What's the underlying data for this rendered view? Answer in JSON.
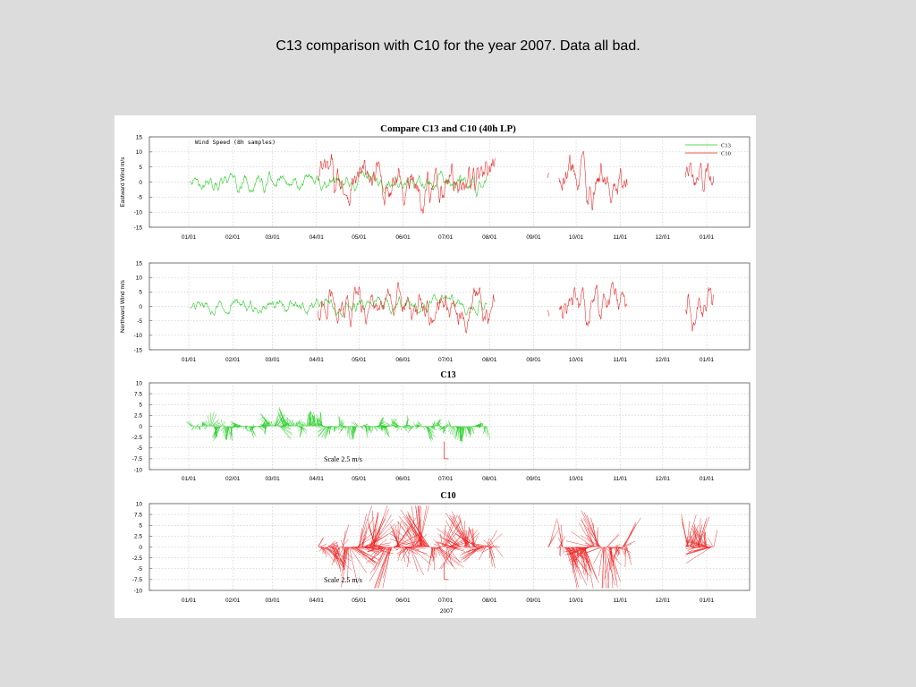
{
  "slide": {
    "title": "C13 comparison with C10 for the year 2007. Data all bad."
  },
  "colors": {
    "c13": "#22cc22",
    "c10": "#ee2222",
    "grid": "#bbbbbb",
    "frame": "#555555"
  },
  "chart_data": [
    {
      "type": "line",
      "title": "Compare C13 and C10 (40h LP)",
      "annotation": "Wind Speed (8h samples)",
      "ylabel": "Eastward Wind m/s",
      "ylim": [
        -15,
        15
      ],
      "yticks": [
        "15",
        "10",
        "5",
        "0",
        "-5",
        "-10",
        "-15"
      ],
      "xticks": [
        "01/01",
        "02/01",
        "03/01",
        "04/01",
        "05/01",
        "06/01",
        "07/01",
        "08/01",
        "09/01",
        "10/01",
        "11/01",
        "12/01",
        "01/01"
      ],
      "legend": {
        "position": "top-right",
        "entries": [
          "C13",
          "C10"
        ]
      },
      "series": [
        {
          "name": "C13",
          "segments": [
            [
              1,
              210
            ]
          ],
          "amplitude": 2.0
        },
        {
          "name": "C10",
          "segments": [
            [
              91,
              216
            ],
            [
              253,
              254
            ],
            [
              261,
              309
            ],
            [
              350,
              370
            ]
          ],
          "amplitude": 5.0
        }
      ]
    },
    {
      "type": "line",
      "ylabel": "Northward Wind m/s",
      "ylim": [
        -15,
        15
      ],
      "yticks": [
        "15",
        "10",
        "5",
        "0",
        "-5",
        "-10",
        "-15"
      ],
      "xticks": [
        "01/01",
        "02/01",
        "03/01",
        "04/01",
        "05/01",
        "06/01",
        "07/01",
        "08/01",
        "09/01",
        "10/01",
        "11/01",
        "12/01",
        "01/01"
      ],
      "series": [
        {
          "name": "C13",
          "segments": [
            [
              1,
              210
            ]
          ],
          "amplitude": 1.8
        },
        {
          "name": "C10",
          "segments": [
            [
              91,
              216
            ],
            [
              253,
              254
            ],
            [
              261,
              309
            ],
            [
              350,
              370
            ]
          ],
          "amplitude": 4.5
        }
      ]
    },
    {
      "type": "quiver",
      "title": "C13",
      "ylim": [
        -10,
        10
      ],
      "yticks": [
        "10",
        "7.5",
        "5",
        "2.5",
        "0",
        "-2.5",
        "-5",
        "-7.5",
        "-10"
      ],
      "xticks": [
        "01/01",
        "02/01",
        "03/01",
        "04/01",
        "05/01",
        "06/01",
        "07/01",
        "08/01",
        "09/01",
        "10/01",
        "11/01",
        "12/01",
        "01/01"
      ],
      "scale_label": "Scale 2.5 m/s",
      "series": [
        {
          "name": "C13",
          "segments": [
            [
              1,
              210
            ]
          ],
          "amplitude": 2.0
        }
      ]
    },
    {
      "type": "quiver",
      "title": "C10",
      "ylim": [
        -10,
        10
      ],
      "yticks": [
        "10",
        "7.5",
        "5",
        "2.5",
        "0",
        "-2.5",
        "-5",
        "-7.5",
        "-10"
      ],
      "xticks": [
        "01/01",
        "02/01",
        "03/01",
        "04/01",
        "05/01",
        "06/01",
        "07/01",
        "08/01",
        "09/01",
        "10/01",
        "11/01",
        "12/01",
        "01/01"
      ],
      "xlabel": "2007",
      "scale_label": "Scale 2.5 m/s",
      "series": [
        {
          "name": "C10",
          "segments": [
            [
              91,
              216
            ],
            [
              253,
              254
            ],
            [
              261,
              309
            ],
            [
              350,
              370
            ]
          ],
          "amplitude": 6.0
        }
      ]
    }
  ]
}
